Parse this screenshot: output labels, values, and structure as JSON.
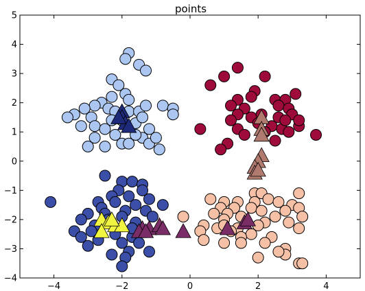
{
  "chart_data": {
    "type": "scatter",
    "title": "points",
    "xlabel": "",
    "ylabel": "",
    "xlim": [
      -5,
      5
    ],
    "ylim": [
      -4,
      5
    ],
    "xticks": [
      "−4",
      "−2",
      "0",
      "2",
      "4"
    ],
    "yticks": [
      "−4",
      "−3",
      "−2",
      "−1",
      "0",
      "1",
      "2",
      "3",
      "4",
      "5"
    ],
    "xtick_values": [
      -4,
      -2,
      0,
      2,
      4
    ],
    "ytick_values": [
      -4,
      -3,
      -2,
      -1,
      0,
      1,
      2,
      3,
      4,
      5
    ],
    "grid": false,
    "legend": "none",
    "clusters": [
      {
        "marker": "circle",
        "color": "#abc6f0",
        "points": [
          [
            -1.8,
            3.7
          ],
          [
            -1.9,
            3.5
          ],
          [
            -1.5,
            3.3
          ],
          [
            -1.3,
            3.1
          ],
          [
            -2.3,
            2.8
          ],
          [
            -2.1,
            2.6
          ],
          [
            -1.9,
            2.3
          ],
          [
            -2.3,
            2.2
          ],
          [
            -1.8,
            2.1
          ],
          [
            -2.6,
            2.0
          ],
          [
            -2.8,
            1.9
          ],
          [
            -3.1,
            1.8
          ],
          [
            -2.4,
            1.8
          ],
          [
            -2.2,
            1.7
          ],
          [
            -1.8,
            1.7
          ],
          [
            -1.5,
            1.7
          ],
          [
            -1.3,
            1.9
          ],
          [
            -0.8,
            1.9
          ],
          [
            -0.5,
            1.8
          ],
          [
            -3.4,
            1.6
          ],
          [
            -3.6,
            1.5
          ],
          [
            -2.9,
            1.5
          ],
          [
            -2.0,
            1.4
          ],
          [
            -1.6,
            1.3
          ],
          [
            -1.4,
            1.5
          ],
          [
            -0.5,
            1.6
          ],
          [
            -3.2,
            1.2
          ],
          [
            -2.8,
            1.2
          ],
          [
            -2.5,
            1.1
          ],
          [
            -1.2,
            1.1
          ],
          [
            -2.2,
            0.9
          ],
          [
            -1.4,
            0.8
          ],
          [
            -1.2,
            0.6
          ],
          [
            -1.0,
            0.8
          ],
          [
            -2.8,
            0.8
          ],
          [
            -2.5,
            0.5
          ],
          [
            -3.0,
            0.5
          ],
          [
            -2.0,
            0.6
          ],
          [
            -1.8,
            0.6
          ],
          [
            -0.9,
            0.4
          ],
          [
            -2.3,
            1.4
          ],
          [
            -1.6,
            0.9
          ]
        ]
      },
      {
        "marker": "circle",
        "color": "#9e0a3a",
        "points": [
          [
            1.4,
            3.2
          ],
          [
            1.0,
            2.9
          ],
          [
            2.2,
            2.9
          ],
          [
            0.6,
            2.6
          ],
          [
            1.9,
            2.4
          ],
          [
            1.8,
            2.2
          ],
          [
            1.4,
            2.1
          ],
          [
            2.5,
            2.1
          ],
          [
            3.1,
            2.3
          ],
          [
            2.8,
            2.1
          ],
          [
            2.6,
            1.9
          ],
          [
            1.2,
            1.9
          ],
          [
            1.6,
            1.8
          ],
          [
            2.9,
            1.8
          ],
          [
            3.0,
            1.6
          ],
          [
            2.6,
            1.5
          ],
          [
            1.8,
            1.5
          ],
          [
            1.4,
            1.6
          ],
          [
            2.0,
            1.3
          ],
          [
            2.4,
            1.2
          ],
          [
            3.2,
            1.2
          ],
          [
            1.4,
            1.1
          ],
          [
            2.7,
            1.1
          ],
          [
            0.3,
            1.1
          ],
          [
            2.9,
            1.0
          ],
          [
            1.6,
            0.9
          ],
          [
            3.7,
            0.9
          ],
          [
            1.1,
            0.6
          ],
          [
            0.9,
            0.4
          ],
          [
            2.1,
            1.6
          ],
          [
            1.2,
            1.4
          ],
          [
            2.8,
            1.4
          ],
          [
            3.2,
            1.4
          ],
          [
            2.2,
            1.0
          ],
          [
            2.5,
            0.7
          ]
        ]
      },
      {
        "marker": "circle",
        "color": "#3c4fa8",
        "points": [
          [
            -2.5,
            -0.5
          ],
          [
            -2.0,
            -0.7
          ],
          [
            -1.7,
            -0.7
          ],
          [
            -1.4,
            -0.8
          ],
          [
            -1.4,
            -1.0
          ],
          [
            -2.1,
            -1.0
          ],
          [
            -2.3,
            -1.2
          ],
          [
            -1.8,
            -1.2
          ],
          [
            -1.2,
            -1.3
          ],
          [
            -2.7,
            -1.4
          ],
          [
            -4.1,
            -1.4
          ],
          [
            -2.2,
            -1.4
          ],
          [
            -1.6,
            -1.5
          ],
          [
            -0.8,
            -1.5
          ],
          [
            -2.6,
            -1.6
          ],
          [
            -1.9,
            -1.7
          ],
          [
            -1.3,
            -1.7
          ],
          [
            -2.5,
            -1.8
          ],
          [
            -3.0,
            -1.8
          ],
          [
            -2.0,
            -1.9
          ],
          [
            -1.1,
            -1.9
          ],
          [
            -3.2,
            -2.0
          ],
          [
            -1.6,
            -2.1
          ],
          [
            -2.8,
            -2.2
          ],
          [
            -2.9,
            -2.4
          ],
          [
            -2.2,
            -2.5
          ],
          [
            -1.7,
            -2.6
          ],
          [
            -3.4,
            -2.4
          ],
          [
            -3.2,
            -2.6
          ],
          [
            -2.7,
            -2.7
          ],
          [
            -2.0,
            -2.8
          ],
          [
            -1.5,
            -2.8
          ],
          [
            -3.0,
            -2.9
          ],
          [
            -1.8,
            -3.1
          ],
          [
            -2.3,
            -3.2
          ],
          [
            -1.9,
            -3.3
          ],
          [
            -2.0,
            -3.6
          ],
          [
            -1.2,
            -3.1
          ],
          [
            -1.7,
            -2.3
          ],
          [
            -2.4,
            -2.0
          ]
        ]
      },
      {
        "marker": "circle",
        "color": "#f5c0a5",
        "points": [
          [
            1.9,
            -1.1
          ],
          [
            2.1,
            -1.1
          ],
          [
            3.2,
            -1.1
          ],
          [
            0.6,
            -1.3
          ],
          [
            1.0,
            -1.4
          ],
          [
            1.4,
            -1.4
          ],
          [
            1.9,
            -1.4
          ],
          [
            2.3,
            -1.3
          ],
          [
            2.6,
            -1.4
          ],
          [
            3.0,
            -1.5
          ],
          [
            0.9,
            -1.6
          ],
          [
            1.3,
            -1.6
          ],
          [
            1.8,
            -1.6
          ],
          [
            2.1,
            -1.7
          ],
          [
            2.8,
            -1.7
          ],
          [
            3.2,
            -1.6
          ],
          [
            0.7,
            -1.8
          ],
          [
            1.1,
            -1.8
          ],
          [
            1.5,
            -1.9
          ],
          [
            2.5,
            -1.9
          ],
          [
            3.3,
            -1.9
          ],
          [
            -0.2,
            -1.9
          ],
          [
            1.0,
            -2.0
          ],
          [
            2.2,
            -2.1
          ],
          [
            2.9,
            -2.1
          ],
          [
            0.4,
            -2.2
          ],
          [
            0.8,
            -2.3
          ],
          [
            1.4,
            -2.3
          ],
          [
            2.0,
            -2.2
          ],
          [
            3.2,
            -2.3
          ],
          [
            0.3,
            -2.4
          ],
          [
            1.2,
            -2.4
          ],
          [
            1.8,
            -2.5
          ],
          [
            1.5,
            -2.6
          ],
          [
            2.4,
            -2.6
          ],
          [
            0.4,
            -2.7
          ],
          [
            1.5,
            -2.8
          ],
          [
            1.0,
            -2.8
          ],
          [
            2.2,
            -2.8
          ],
          [
            2.8,
            -3.0
          ],
          [
            2.8,
            -3.2
          ],
          [
            2.6,
            -3.1
          ],
          [
            2.0,
            -3.3
          ],
          [
            3.2,
            -3.5
          ],
          [
            3.3,
            -3.5
          ],
          [
            1.0,
            -2.2
          ]
        ]
      }
    ],
    "triangles": [
      {
        "color": "#1e2a7a",
        "points": [
          [
            -2.0,
            1.7
          ],
          [
            -2.0,
            1.5
          ],
          [
            -1.9,
            1.3
          ],
          [
            -1.8,
            1.2
          ],
          [
            -2.1,
            1.5
          ]
        ]
      },
      {
        "color": "#b07a6e",
        "points": [
          [
            2.1,
            1.5
          ],
          [
            2.1,
            1.1
          ],
          [
            2.1,
            0.9
          ],
          [
            2.1,
            0.2
          ],
          [
            2.0,
            0.0
          ],
          [
            1.9,
            -0.2
          ],
          [
            1.9,
            -0.4
          ],
          [
            2.0,
            -0.3
          ]
        ]
      },
      {
        "color": "#f2f540",
        "points": [
          [
            -2.6,
            -2.0
          ],
          [
            -2.4,
            -2.1
          ],
          [
            -2.2,
            -2.2
          ],
          [
            -2.0,
            -2.2
          ],
          [
            -2.6,
            -2.4
          ],
          [
            -2.3,
            -2.0
          ]
        ]
      },
      {
        "color": "#7a2c66",
        "points": [
          [
            -1.4,
            -2.3
          ],
          [
            -1.2,
            -2.3
          ],
          [
            -0.9,
            -2.2
          ],
          [
            -0.8,
            -2.3
          ],
          [
            -1.5,
            -2.4
          ],
          [
            -0.2,
            -2.4
          ],
          [
            1.1,
            -2.3
          ],
          [
            1.6,
            -2.1
          ],
          [
            1.7,
            -2.0
          ],
          [
            -1.3,
            -2.4
          ]
        ]
      }
    ]
  }
}
